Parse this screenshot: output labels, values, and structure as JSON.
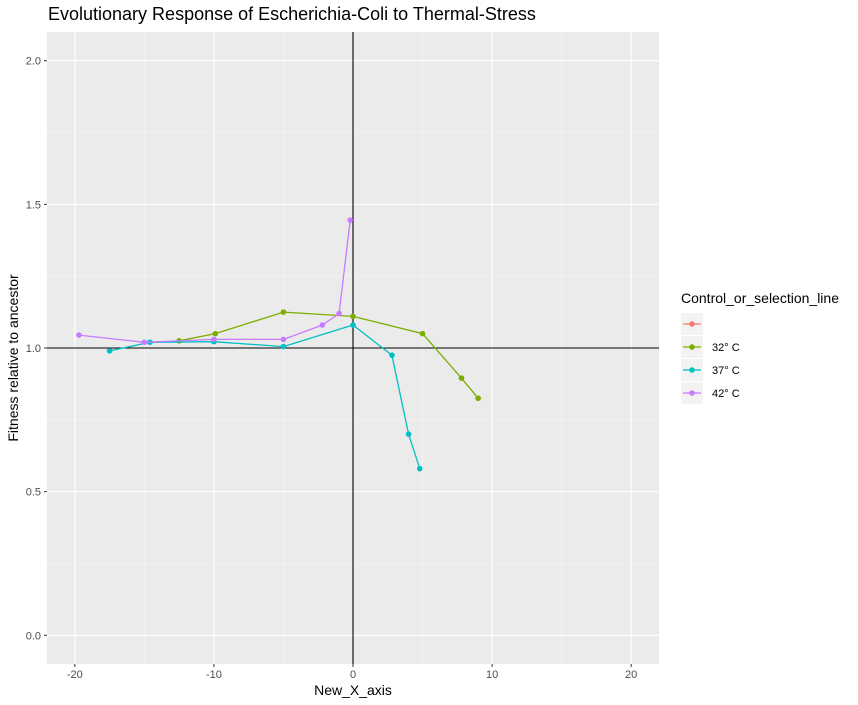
{
  "chart_data": {
    "type": "line",
    "title": "Evolutionary Response of Escherichia-Coli to Thermal-Stress",
    "xlabel": "New_X_axis",
    "ylabel": "Fitness relative to ancestor",
    "xlim": [
      -22,
      22
    ],
    "ylim": [
      -0.1,
      2.1
    ],
    "x_ticks": [
      -20,
      -10,
      0,
      10,
      20
    ],
    "x_tick_labels": [
      "-20",
      "-10",
      "0",
      "10",
      "20"
    ],
    "y_ticks": [
      0.0,
      0.5,
      1.0,
      1.5,
      2.0
    ],
    "y_tick_labels": [
      "0.0",
      "0.5",
      "1.0",
      "1.5",
      "2.0"
    ],
    "reference_lines": {
      "x": 0,
      "y": 1
    },
    "grid": true,
    "background": "#ebebeb",
    "legend": {
      "title": "Control_or_selection_line",
      "position": "right",
      "entries": [
        {
          "label": "",
          "color": "#F8766D"
        },
        {
          "label": "32° C",
          "color": "#7CAE00"
        },
        {
          "label": "37° C",
          "color": "#00BFC4"
        },
        {
          "label": "42° C",
          "color": "#C77CFF"
        }
      ]
    },
    "series": [
      {
        "name": "32° C",
        "color": "#7CAE00",
        "x": [
          -12.5,
          -9.9,
          -5.0,
          0.0,
          5.0,
          7.8,
          9.0
        ],
        "y": [
          1.025,
          1.05,
          1.125,
          1.11,
          1.05,
          0.895,
          0.825
        ]
      },
      {
        "name": "37° C",
        "color": "#00BFC4",
        "x": [
          -17.5,
          -14.6,
          -10.0,
          -5.0,
          0.0,
          2.8,
          4.0,
          4.8
        ],
        "y": [
          0.99,
          1.02,
          1.022,
          1.005,
          1.08,
          0.975,
          0.7,
          0.58
        ]
      },
      {
        "name": "42° C",
        "color": "#C77CFF",
        "x": [
          -19.7,
          -15.0,
          -10.0,
          -5.0,
          -2.2,
          -1.0,
          -0.2
        ],
        "y": [
          1.045,
          1.02,
          1.03,
          1.03,
          1.08,
          1.12,
          1.445
        ]
      }
    ]
  }
}
